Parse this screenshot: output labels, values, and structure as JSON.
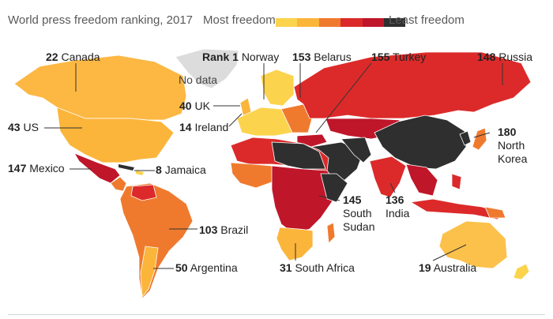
{
  "title": "World press freedom ranking, 2017",
  "legend": {
    "most": "Most freedom",
    "least": "Least freedom",
    "colors": [
      "#fcd34d",
      "#fbb53b",
      "#ef7a2e",
      "#dc2a2a",
      "#c0162a",
      "#2f2f2f"
    ]
  },
  "no_data": "No data",
  "labels": {
    "canada": {
      "rank": "22",
      "name": "Canada"
    },
    "norway": {
      "rank": "Rank 1",
      "name": "Norway"
    },
    "belarus": {
      "rank": "153",
      "name": "Belarus"
    },
    "turkey": {
      "rank": "155",
      "name": "Turkey"
    },
    "russia": {
      "rank": "148",
      "name": "Russia"
    },
    "uk": {
      "rank": "40",
      "name": "UK"
    },
    "us": {
      "rank": "43",
      "name": "US"
    },
    "ireland": {
      "rank": "14",
      "name": "Ireland"
    },
    "north_korea": {
      "rank": "180",
      "name": "North",
      "name2": "Korea"
    },
    "mexico": {
      "rank": "147",
      "name": "Mexico"
    },
    "jamaica": {
      "rank": "8",
      "name": "Jamaica"
    },
    "south_sudan": {
      "rank": "145",
      "name": "South",
      "name2": "Sudan"
    },
    "india": {
      "rank": "136",
      "name": "India"
    },
    "brazil": {
      "rank": "103",
      "name": "Brazil"
    },
    "argentina": {
      "rank": "50",
      "name": "Argentina"
    },
    "south_africa": {
      "rank": "31",
      "name": "South Africa"
    },
    "australia": {
      "rank": "19",
      "name": "Australia"
    }
  }
}
